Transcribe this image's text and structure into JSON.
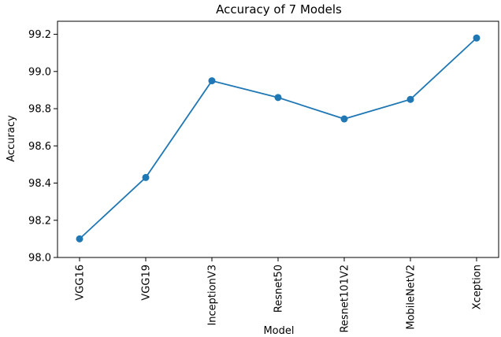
{
  "chart_data": {
    "type": "line",
    "title": "Accuracy of 7 Models",
    "xlabel": "Model",
    "ylabel": "Accuracy",
    "categories": [
      "VGG16",
      "VGG19",
      "InceptionV3",
      "Resnet50",
      "Resnet101V2",
      "MobileNetV2",
      "Xception"
    ],
    "series": [
      {
        "values": [
          98.1,
          98.43,
          98.95,
          98.86,
          98.745,
          98.85,
          99.18
        ],
        "color": "#1f77b4"
      }
    ],
    "ylim": [
      98.0,
      99.27
    ],
    "yticks": [
      "98.0",
      "98.2",
      "98.4",
      "98.6",
      "98.8",
      "99.0",
      "99.2"
    ],
    "grid": false,
    "legend": "none"
  }
}
